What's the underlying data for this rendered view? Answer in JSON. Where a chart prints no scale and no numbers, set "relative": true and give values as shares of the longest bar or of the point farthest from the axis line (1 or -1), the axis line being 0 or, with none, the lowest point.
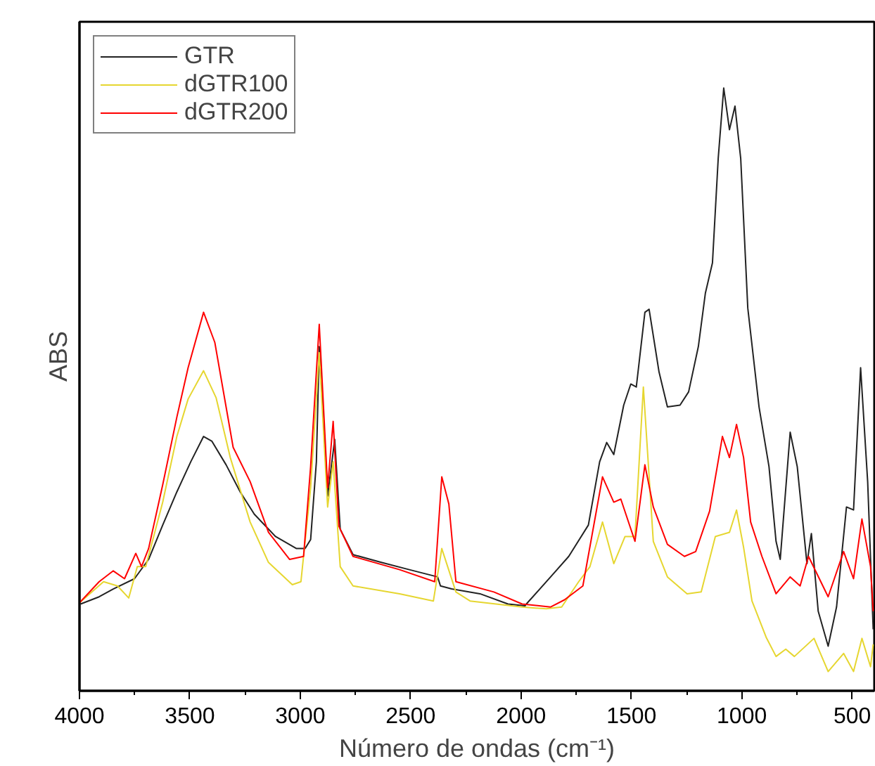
{
  "chart_data": {
    "type": "line",
    "relative": true,
    "xlabel": "Número de ondas (cm⁻¹)",
    "ylabel": "ABS",
    "xlim": [
      4000,
      400
    ],
    "xticks": [
      4000,
      3500,
      3000,
      2500,
      2000,
      1500,
      1000,
      500
    ],
    "tick_labels": "x",
    "legend": "top left",
    "grid": false,
    "marker": "none",
    "line_style": "solid",
    "series": [
      {
        "name": "GTR",
        "color": "#222222",
        "x": [
          3995,
          3911,
          3847,
          3751,
          3687,
          3623,
          3559,
          3496,
          3438,
          3400,
          3336,
          3272,
          3208,
          3112,
          3017,
          2978,
          2953,
          2927,
          2914,
          2876,
          2844,
          2819,
          2761,
          2633,
          2506,
          2378,
          2365,
          2314,
          2186,
          2059,
          1982,
          1976,
          1854,
          1784,
          1695,
          1644,
          1612,
          1580,
          1535,
          1503,
          1478,
          1439,
          1420,
          1375,
          1337,
          1280,
          1241,
          1197,
          1165,
          1133,
          1107,
          1082,
          1056,
          1031,
          1005,
          973,
          922,
          877,
          845,
          826,
          781,
          749,
          705,
          685,
          654,
          609,
          571,
          526,
          494,
          462,
          430,
          405
        ],
        "values": [
          0.144,
          0.156,
          0.169,
          0.186,
          0.218,
          0.275,
          0.33,
          0.38,
          0.422,
          0.414,
          0.375,
          0.33,
          0.293,
          0.256,
          0.236,
          0.236,
          0.251,
          0.38,
          0.571,
          0.323,
          0.417,
          0.268,
          0.226,
          0.213,
          0.201,
          0.189,
          0.174,
          0.169,
          0.161,
          0.144,
          0.141,
          0.144,
          0.194,
          0.223,
          0.275,
          0.38,
          0.412,
          0.392,
          0.474,
          0.509,
          0.504,
          0.628,
          0.633,
          0.529,
          0.471,
          0.474,
          0.496,
          0.571,
          0.66,
          0.71,
          0.883,
          1,
          0.931,
          0.97,
          0.883,
          0.635,
          0.471,
          0.372,
          0.248,
          0.218,
          0.429,
          0.372,
          0.211,
          0.261,
          0.132,
          0.074,
          0.139,
          0.305,
          0.3,
          0.536,
          0.347,
          0.102
        ]
      },
      {
        "name": "dGTR100",
        "color": "#e6d630",
        "x": [
          4000,
          3891,
          3828,
          3777,
          3738,
          3700,
          3623,
          3559,
          3508,
          3438,
          3381,
          3317,
          3227,
          3144,
          3036,
          2997,
          2953,
          2914,
          2876,
          2851,
          2819,
          2761,
          2550,
          2397,
          2359,
          2295,
          2231,
          1995,
          1886,
          1816,
          1739,
          1688,
          1631,
          1580,
          1529,
          1484,
          1446,
          1401,
          1337,
          1248,
          1184,
          1120,
          1056,
          1024,
          992,
          954,
          890,
          845,
          801,
          762,
          673,
          609,
          539,
          494,
          456,
          417,
          405
        ],
        "values": [
          0.146,
          0.181,
          0.174,
          0.154,
          0.206,
          0.206,
          0.313,
          0.422,
          0.484,
          0.531,
          0.486,
          0.387,
          0.28,
          0.213,
          0.176,
          0.181,
          0.337,
          0.561,
          0.305,
          0.38,
          0.206,
          0.174,
          0.161,
          0.149,
          0.236,
          0.164,
          0.149,
          0.139,
          0.136,
          0.139,
          0.181,
          0.206,
          0.28,
          0.211,
          0.256,
          0.256,
          0.504,
          0.248,
          0.189,
          0.161,
          0.164,
          0.256,
          0.263,
          0.3,
          0.238,
          0.149,
          0.089,
          0.057,
          0.069,
          0.057,
          0.087,
          0.032,
          0.062,
          0.032,
          0.087,
          0.04,
          0.077
        ]
      },
      {
        "name": "dGTR200",
        "color": "#ff0000",
        "x": [
          4000,
          3911,
          3847,
          3796,
          3745,
          3719,
          3687,
          3623,
          3559,
          3508,
          3438,
          3387,
          3304,
          3227,
          3144,
          3048,
          2985,
          2953,
          2914,
          2876,
          2851,
          2825,
          2761,
          2550,
          2391,
          2359,
          2327,
          2295,
          2123,
          1995,
          1867,
          1803,
          1720,
          1631,
          1580,
          1548,
          1484,
          1439,
          1401,
          1337,
          1260,
          1209,
          1146,
          1088,
          1056,
          1024,
          992,
          960,
          909,
          845,
          781,
          736,
          698,
          609,
          539,
          494,
          456,
          417,
          405
        ],
        "values": [
          0.146,
          0.181,
          0.199,
          0.186,
          0.228,
          0.206,
          0.236,
          0.342,
          0.454,
          0.536,
          0.628,
          0.578,
          0.404,
          0.347,
          0.263,
          0.218,
          0.223,
          0.372,
          0.608,
          0.337,
          0.447,
          0.273,
          0.223,
          0.201,
          0.181,
          0.355,
          0.31,
          0.181,
          0.164,
          0.144,
          0.139,
          0.151,
          0.174,
          0.355,
          0.313,
          0.318,
          0.248,
          0.375,
          0.305,
          0.243,
          0.223,
          0.231,
          0.298,
          0.422,
          0.387,
          0.442,
          0.387,
          0.28,
          0.223,
          0.161,
          0.189,
          0.174,
          0.223,
          0.156,
          0.231,
          0.186,
          0.285,
          0.206,
          0.132
        ]
      }
    ]
  }
}
